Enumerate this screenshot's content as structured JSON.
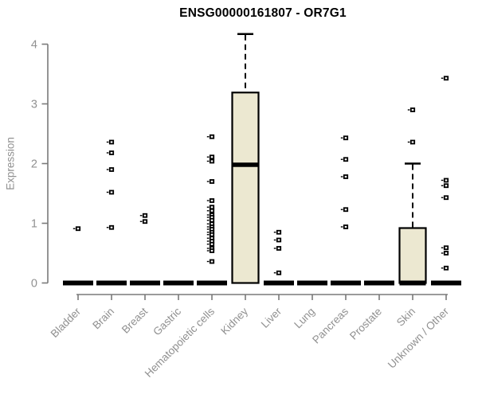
{
  "figure": {
    "title": "ENSG00000161807 - OR7G1",
    "ylabel": "Expression"
  },
  "chart_data": {
    "type": "boxplot",
    "title": "ENSG00000161807 - OR7G1",
    "xlabel": "",
    "ylabel": "Expression",
    "ylim": [
      0,
      4.3
    ],
    "yticks": [
      0,
      1,
      2,
      3,
      4
    ],
    "grid": false,
    "legend": null,
    "categories": [
      "Bladder",
      "Brain",
      "Breast",
      "Gastric",
      "Hematopoietic cells",
      "Kidney",
      "Liver",
      "Lung",
      "Pancreas",
      "Prostate",
      "Skin",
      "Unknown / Other"
    ],
    "boxes": [
      {
        "category": "Bladder",
        "q1": 0,
        "median": 0,
        "q3": 0,
        "whisker_low": 0,
        "whisker_high": 0,
        "outliers": [
          0.91
        ]
      },
      {
        "category": "Brain",
        "q1": 0,
        "median": 0,
        "q3": 0,
        "whisker_low": 0,
        "whisker_high": 0,
        "outliers": [
          2.36,
          2.18,
          1.9,
          1.52,
          0.93
        ]
      },
      {
        "category": "Breast",
        "q1": 0,
        "median": 0,
        "q3": 0,
        "whisker_low": 0,
        "whisker_high": 0,
        "outliers": [
          1.13,
          1.03
        ]
      },
      {
        "category": "Gastric",
        "q1": 0,
        "median": 0,
        "q3": 0,
        "whisker_low": 0,
        "whisker_high": 0,
        "outliers": []
      },
      {
        "category": "Hematopoietic cells",
        "q1": 0,
        "median": 0,
        "q3": 0,
        "whisker_low": 0,
        "whisker_high": 0,
        "outliers": [
          2.45,
          2.11,
          2.04,
          1.7,
          1.38,
          1.27,
          1.21,
          1.14,
          1.1,
          1.05,
          0.99,
          0.94,
          0.9,
          0.85,
          0.81,
          0.75,
          0.7,
          0.65,
          0.58,
          0.54,
          0.36
        ]
      },
      {
        "category": "Kidney",
        "q1": 0,
        "median": 1.98,
        "q3": 3.19,
        "whisker_low": 0,
        "whisker_high": 4.17,
        "outliers": []
      },
      {
        "category": "Liver",
        "q1": 0,
        "median": 0,
        "q3": 0,
        "whisker_low": 0,
        "whisker_high": 0,
        "outliers": [
          0.85,
          0.72,
          0.58,
          0.17
        ]
      },
      {
        "category": "Lung",
        "q1": 0,
        "median": 0,
        "q3": 0,
        "whisker_low": 0,
        "whisker_high": 0,
        "outliers": []
      },
      {
        "category": "Pancreas",
        "q1": 0,
        "median": 0,
        "q3": 0,
        "whisker_low": 0,
        "whisker_high": 0,
        "outliers": [
          2.43,
          2.07,
          1.78,
          1.23,
          0.94
        ]
      },
      {
        "category": "Prostate",
        "q1": 0,
        "median": 0,
        "q3": 0,
        "whisker_low": 0,
        "whisker_high": 0,
        "outliers": []
      },
      {
        "category": "Skin",
        "q1": 0,
        "median": 0,
        "q3": 0.92,
        "whisker_low": 0,
        "whisker_high": 2.0,
        "outliers": [
          2.9,
          2.36
        ]
      },
      {
        "category": "Unknown / Other",
        "q1": 0,
        "median": 0,
        "q3": 0,
        "whisker_low": 0,
        "whisker_high": 0,
        "outliers": [
          3.43,
          1.72,
          1.63,
          1.43,
          0.59,
          0.5,
          0.25
        ]
      }
    ],
    "style": {
      "box_fill": "#ece8d1",
      "box_border": "#000000",
      "median_color": "#000000",
      "axis_color": "#7a7a7a",
      "tick_label_color": "#909090",
      "title_color": "#000000",
      "background": "#ffffff"
    }
  }
}
